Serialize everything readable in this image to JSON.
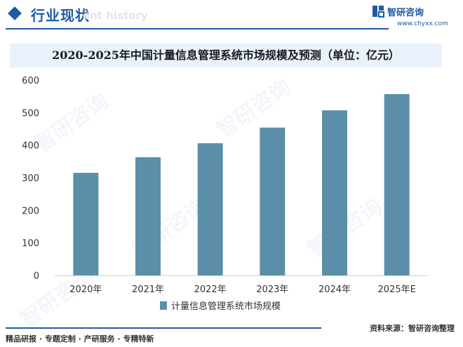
{
  "header": {
    "section_title": "行业现状",
    "section_subtitle": "ent history",
    "brand_name": "智研咨询",
    "brand_url": "www.chyxx.com"
  },
  "footer": {
    "services": "精品研报 · 专题定制 · 产研服务 · 专精特新",
    "source": "资料来源：智研咨询整理"
  },
  "watermark_text": "智研咨询",
  "colors": {
    "brand": "#1f5aa6",
    "bar": "#5b8fa8",
    "title_bg": "#e9f1fb"
  },
  "chart_data": {
    "type": "bar",
    "title": "2020-2025年中国计量信息管理系统市场规模及预测（单位：亿元）",
    "categories": [
      "2020年",
      "2021年",
      "2022年",
      "2023年",
      "2024年",
      "2025年E"
    ],
    "series": [
      {
        "name": "计量信息管理系统市场规模",
        "values": [
          315,
          363,
          406,
          454,
          507,
          557
        ]
      }
    ],
    "ylim": [
      0,
      600
    ],
    "yticks": [
      0,
      100,
      200,
      300,
      400,
      500,
      600
    ],
    "xlabel": "",
    "ylabel": "",
    "grid": false,
    "legend": "bottom"
  }
}
